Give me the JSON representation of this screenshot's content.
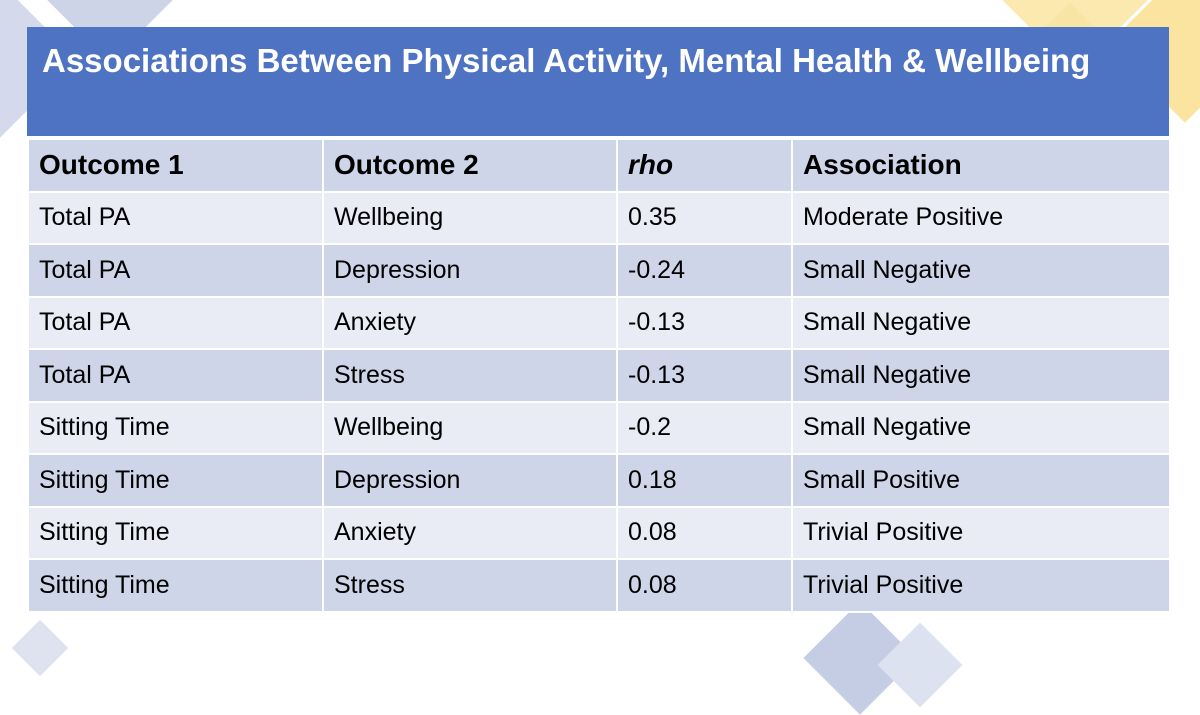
{
  "title": "Associations Between Physical Activity, Mental Health & Wellbeing",
  "table": {
    "headers": [
      "Outcome 1",
      "Outcome 2",
      "rho",
      "Association"
    ],
    "rows": [
      [
        "Total PA",
        "Wellbeing",
        "0.35",
        "Moderate Positive"
      ],
      [
        "Total PA",
        "Depression",
        "-0.24",
        "Small Negative"
      ],
      [
        "Total PA",
        "Anxiety",
        "-0.13",
        "Small Negative"
      ],
      [
        "Total PA",
        "Stress",
        "-0.13",
        "Small Negative"
      ],
      [
        "Sitting Time",
        "Wellbeing",
        "-0.2",
        "Small Negative"
      ],
      [
        "Sitting Time",
        "Depression",
        "0.18",
        "Small Positive"
      ],
      [
        "Sitting Time",
        "Anxiety",
        "0.08",
        "Trivial Positive"
      ],
      [
        "Sitting Time",
        "Stress",
        "0.08",
        "Trivial Positive"
      ]
    ]
  },
  "colors": {
    "title_band": "#4e73c2",
    "row_dark": "#cfd5e9",
    "row_light": "#e9ebf5",
    "decor_blue": "#c5cde4",
    "decor_yellow": "#fbe9b0"
  }
}
